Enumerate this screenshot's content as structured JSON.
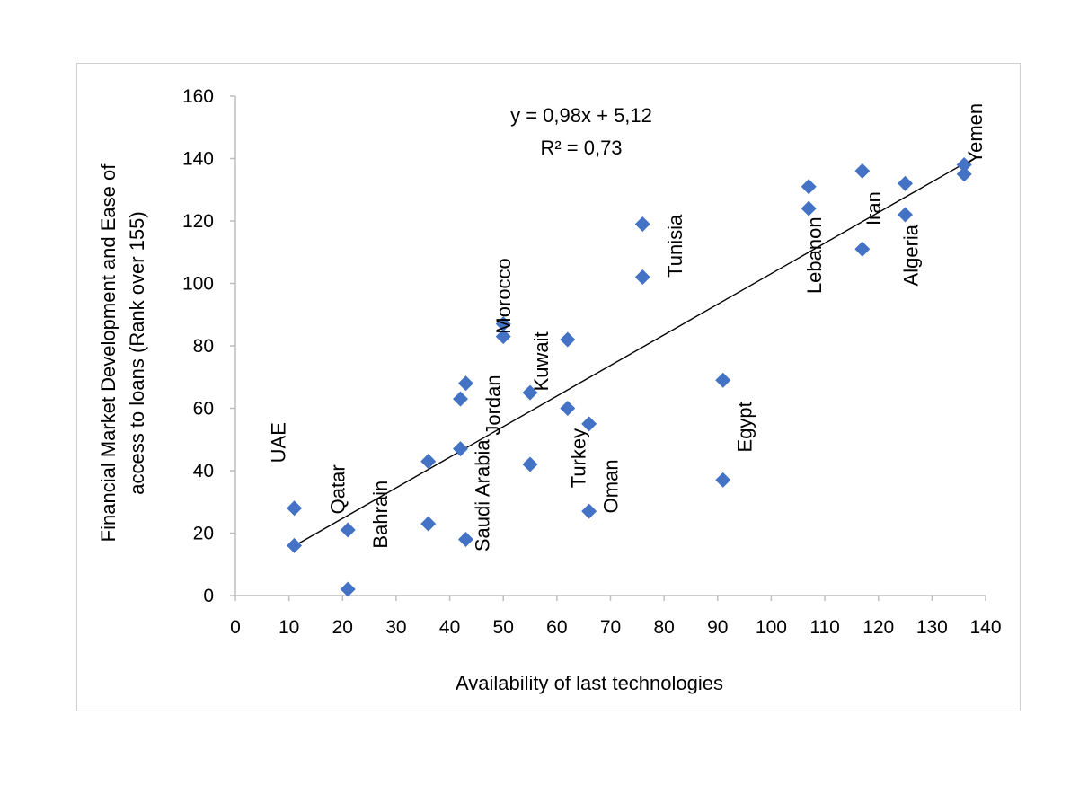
{
  "chart_data": {
    "type": "scatter",
    "xlabel": "Availability of last technologies",
    "ylabel_line1": "Financial Market Development and Ease of",
    "ylabel_line2": "access  to loans (Rank over 155)",
    "xlim": [
      0,
      140
    ],
    "ylim": [
      0,
      160
    ],
    "x_ticks": [
      "0",
      "10",
      "20",
      "30",
      "40",
      "50",
      "60",
      "70",
      "80",
      "90",
      "100",
      "110",
      "120",
      "130",
      "140"
    ],
    "y_ticks": [
      "0",
      "20",
      "40",
      "60",
      "80",
      "100",
      "120",
      "140",
      "160"
    ],
    "grid": false,
    "legend": "none",
    "marker_color": "#4472C4",
    "trendline": {
      "slope": 0.98,
      "intercept": 5.12,
      "x_range": [
        11,
        136
      ],
      "equation": "y = 0,98x + 5,12",
      "r_squared": "R² = 0,73"
    },
    "points": [
      {
        "x": 11,
        "y": 28
      },
      {
        "x": 11,
        "y": 16
      },
      {
        "x": 21,
        "y": 21
      },
      {
        "x": 21,
        "y": 2
      },
      {
        "x": 36,
        "y": 43
      },
      {
        "x": 36,
        "y": 23
      },
      {
        "x": 42,
        "y": 63
      },
      {
        "x": 42,
        "y": 47
      },
      {
        "x": 43,
        "y": 68
      },
      {
        "x": 43,
        "y": 18
      },
      {
        "x": 50,
        "y": 87
      },
      {
        "x": 50,
        "y": 83
      },
      {
        "x": 55,
        "y": 65
      },
      {
        "x": 55,
        "y": 42
      },
      {
        "x": 62,
        "y": 82
      },
      {
        "x": 62,
        "y": 60
      },
      {
        "x": 66,
        "y": 55
      },
      {
        "x": 66,
        "y": 27
      },
      {
        "x": 76,
        "y": 119
      },
      {
        "x": 76,
        "y": 102
      },
      {
        "x": 91,
        "y": 69
      },
      {
        "x": 91,
        "y": 37
      },
      {
        "x": 107,
        "y": 131
      },
      {
        "x": 107,
        "y": 124
      },
      {
        "x": 117,
        "y": 136
      },
      {
        "x": 117,
        "y": 111
      },
      {
        "x": 125,
        "y": 132
      },
      {
        "x": 125,
        "y": 122
      },
      {
        "x": 136,
        "y": 138
      },
      {
        "x": 136,
        "y": 135
      }
    ],
    "labels": [
      {
        "text": "UAE",
        "x": 8,
        "y": 49
      },
      {
        "text": "Qatar",
        "x": 19,
        "y": 34
      },
      {
        "text": "Bahrain",
        "x": 27,
        "y": 26
      },
      {
        "text": "Saudi Arabia",
        "x": 46,
        "y": 32
      },
      {
        "text": "Jordan",
        "x": 48,
        "y": 61
      },
      {
        "text": "Morocco",
        "x": 50,
        "y": 96
      },
      {
        "text": "Kuwait",
        "x": 57,
        "y": 75
      },
      {
        "text": "Turkey",
        "x": 64,
        "y": 44
      },
      {
        "text": "Oman",
        "x": 70,
        "y": 35
      },
      {
        "text": "Tunisia",
        "x": 82,
        "y": 112
      },
      {
        "text": "Egypt",
        "x": 95,
        "y": 54
      },
      {
        "text": "Lebanon",
        "x": 108,
        "y": 109
      },
      {
        "text": "Iran",
        "x": 119,
        "y": 124
      },
      {
        "text": "Algeria",
        "x": 126,
        "y": 109
      },
      {
        "text": "Yemen",
        "x": 138,
        "y": 148
      }
    ]
  }
}
